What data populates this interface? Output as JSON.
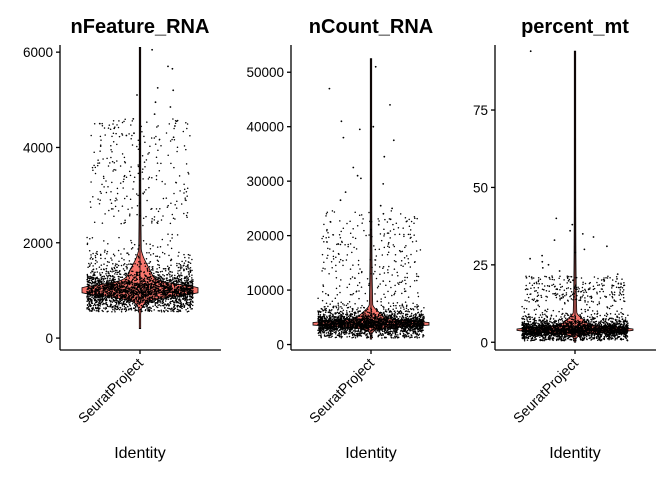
{
  "colors": {
    "violin_fill": "#f8766d",
    "violin_stroke": "#000000",
    "point": "#000000",
    "background": "#ffffff"
  },
  "chart_data": [
    {
      "type": "violin",
      "title": "nFeature_RNA",
      "categories": [
        "SeuratProject"
      ],
      "xlabel": "Identity",
      "ylabel": "",
      "ylim": [
        -250,
        6150
      ],
      "yticks": [
        0,
        2000,
        4000,
        6000
      ],
      "ytick_labels": [
        "0",
        "2000",
        "4000",
        "6000"
      ],
      "range": [
        200,
        6100
      ],
      "mode": 1000,
      "bulk": [
        550,
        2400
      ],
      "tail_points": [
        5250,
        5650,
        6050,
        5700,
        5200,
        5100,
        4950,
        4850,
        4700,
        4600,
        4500,
        4450,
        4400,
        4300,
        4250
      ],
      "max_point": 6100,
      "grid": false,
      "legend": "none"
    },
    {
      "type": "violin",
      "title": "nCount_RNA",
      "categories": [
        "SeuratProject"
      ],
      "xlabel": "Identity",
      "ylabel": "",
      "ylim": [
        -1000,
        55000
      ],
      "yticks": [
        0,
        10000,
        20000,
        30000,
        40000,
        50000
      ],
      "ytick_labels": [
        "0",
        "10000",
        "20000",
        "30000",
        "40000",
        "50000"
      ],
      "range": [
        1000,
        52500
      ],
      "mode": 3800,
      "bulk": [
        1200,
        9000
      ],
      "tail_points": [
        51000,
        47000,
        44000,
        41000,
        40000,
        39500,
        38000,
        37500,
        34500,
        32500,
        31000,
        30500,
        29500,
        28000,
        26500,
        25500,
        25000,
        24000,
        23000,
        22500,
        22000
      ],
      "max_point": 52500,
      "grid": false,
      "legend": "none"
    },
    {
      "type": "violin",
      "title": "percent_mt",
      "categories": [
        "SeuratProject"
      ],
      "xlabel": "Identity",
      "ylabel": "",
      "ylim": [
        -2.5,
        96
      ],
      "yticks": [
        0,
        25,
        50,
        75
      ],
      "ytick_labels": [
        "0",
        "25",
        "50",
        "75"
      ],
      "range": [
        0,
        94
      ],
      "mode": 4,
      "bulk": [
        0.5,
        13
      ],
      "tail_points": [
        94,
        40,
        38,
        36,
        35,
        34,
        33,
        31,
        30,
        29,
        28,
        27,
        26,
        25,
        24,
        23,
        22,
        21,
        20
      ],
      "max_point": 94,
      "grid": false,
      "legend": "none"
    }
  ]
}
